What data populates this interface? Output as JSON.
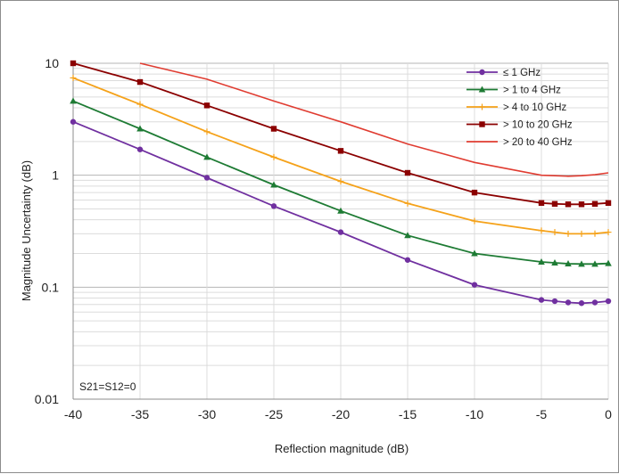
{
  "chart_data": {
    "type": "line",
    "xlabel": "Reflection magnitude (dB)",
    "ylabel": "Magnitude Uncertainty (dB)",
    "x_ticks": [
      "-40",
      "-35",
      "-30",
      "-25",
      "-20",
      "-15",
      "-10",
      "-5",
      "0"
    ],
    "y_ticks": [
      "10",
      "1",
      "0.1",
      "0.01"
    ],
    "xlim": [
      -40,
      0
    ],
    "ylim": [
      0.01,
      10
    ],
    "yscale": "log",
    "grid": true,
    "legend_position": "top-right",
    "annotation": "S21=S12=0",
    "series": [
      {
        "name": "≤ 1 GHz",
        "color": "#7030A0",
        "marker": "circle",
        "x": [
          -40,
          -35,
          -30,
          -25,
          -20,
          -15,
          -10,
          -5,
          -4,
          -3,
          -2,
          -1,
          0
        ],
        "y": [
          3.0,
          1.7,
          0.95,
          0.53,
          0.31,
          0.175,
          0.105,
          0.077,
          0.075,
          0.073,
          0.072,
          0.073,
          0.075
        ]
      },
      {
        "name": "> 1 to 4 GHz",
        "color": "#1E7B34",
        "marker": "triangle",
        "x": [
          -40,
          -35,
          -30,
          -25,
          -20,
          -15,
          -10,
          -5,
          -4,
          -3,
          -2,
          -1,
          0
        ],
        "y": [
          4.6,
          2.6,
          1.45,
          0.82,
          0.48,
          0.29,
          0.2,
          0.168,
          0.165,
          0.162,
          0.161,
          0.161,
          0.163
        ]
      },
      {
        "name": "> 4 to 10 GHz",
        "color": "#F5A21A",
        "marker": "plus",
        "x": [
          -40,
          -35,
          -30,
          -25,
          -20,
          -15,
          -10,
          -5,
          -4,
          -3,
          -2,
          -1,
          0
        ],
        "y": [
          7.4,
          4.3,
          2.45,
          1.45,
          0.88,
          0.56,
          0.39,
          0.32,
          0.31,
          0.3,
          0.3,
          0.301,
          0.31
        ]
      },
      {
        "name": "> 10 to 20 GHz",
        "color": "#8B0000",
        "marker": "square",
        "x": [
          -40,
          -35,
          -30,
          -25,
          -20,
          -15,
          -10,
          -5,
          -4,
          -3,
          -2,
          -1,
          0
        ],
        "y": [
          10.0,
          6.8,
          4.2,
          2.6,
          1.65,
          1.05,
          0.7,
          0.565,
          0.555,
          0.55,
          0.55,
          0.555,
          0.565
        ]
      },
      {
        "name": "> 20 to 40 GHz",
        "color": "#E03C31",
        "marker": "none",
        "x": [
          -35,
          -30,
          -25,
          -20,
          -15,
          -10,
          -5,
          -4,
          -3,
          -2,
          -1,
          0
        ],
        "y": [
          10.0,
          7.2,
          4.6,
          3.0,
          1.9,
          1.3,
          1.0,
          0.99,
          0.98,
          0.99,
          1.01,
          1.05
        ]
      }
    ]
  }
}
